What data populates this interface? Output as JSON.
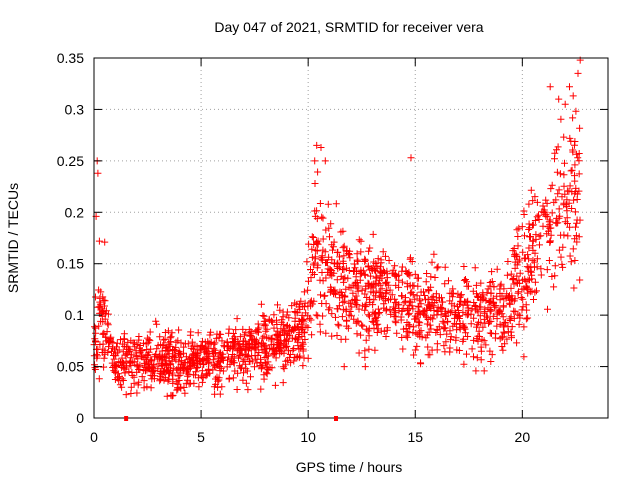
{
  "chart_data": {
    "type": "scatter",
    "title": "Day 047 of 2021, SRMTID for receiver vera",
    "xlabel": "GPS time / hours",
    "ylabel": "SRMTID / TECUs",
    "xlim": [
      0,
      24
    ],
    "ylim": [
      0,
      0.35
    ],
    "x_ticks": [
      "0",
      "5",
      "10",
      "15",
      "20"
    ],
    "y_ticks": [
      "0",
      "0.05",
      "0.1",
      "0.15",
      "0.2",
      "0.25",
      "0.3",
      "0.35"
    ],
    "grid": true,
    "marker": "+",
    "color": "#ff0000",
    "gap_markers_hours": [
      1.5,
      11.3
    ],
    "series": [
      {
        "name": "SRMTID",
        "profile": [
          {
            "x": 0.0,
            "y": 0.075,
            "spread": 0.02
          },
          {
            "x": 0.3,
            "y": 0.1,
            "spread": 0.03
          },
          {
            "x": 0.6,
            "y": 0.085,
            "spread": 0.025
          },
          {
            "x": 1.0,
            "y": 0.052,
            "spread": 0.018
          },
          {
            "x": 2.0,
            "y": 0.055,
            "spread": 0.02
          },
          {
            "x": 3.0,
            "y": 0.055,
            "spread": 0.02
          },
          {
            "x": 4.0,
            "y": 0.052,
            "spread": 0.02
          },
          {
            "x": 5.0,
            "y": 0.055,
            "spread": 0.02
          },
          {
            "x": 6.0,
            "y": 0.058,
            "spread": 0.02
          },
          {
            "x": 7.0,
            "y": 0.065,
            "spread": 0.02
          },
          {
            "x": 8.0,
            "y": 0.07,
            "spread": 0.022
          },
          {
            "x": 9.0,
            "y": 0.08,
            "spread": 0.025
          },
          {
            "x": 9.8,
            "y": 0.085,
            "spread": 0.03
          },
          {
            "x": 10.3,
            "y": 0.16,
            "spread": 0.045
          },
          {
            "x": 10.8,
            "y": 0.15,
            "spread": 0.04
          },
          {
            "x": 11.5,
            "y": 0.12,
            "spread": 0.035
          },
          {
            "x": 13.0,
            "y": 0.125,
            "spread": 0.035
          },
          {
            "x": 15.0,
            "y": 0.11,
            "spread": 0.03
          },
          {
            "x": 17.0,
            "y": 0.1,
            "spread": 0.03
          },
          {
            "x": 19.0,
            "y": 0.1,
            "spread": 0.03
          },
          {
            "x": 20.0,
            "y": 0.14,
            "spread": 0.04
          },
          {
            "x": 21.0,
            "y": 0.18,
            "spread": 0.045
          },
          {
            "x": 22.0,
            "y": 0.21,
            "spread": 0.05
          },
          {
            "x": 22.7,
            "y": 0.23,
            "spread": 0.06
          }
        ],
        "spikes": [
          {
            "x": 0.15,
            "y": 0.25
          },
          {
            "x": 0.18,
            "y": 0.238
          },
          {
            "x": 0.1,
            "y": 0.196
          },
          {
            "x": 0.25,
            "y": 0.172
          },
          {
            "x": 0.5,
            "y": 0.171
          },
          {
            "x": 10.4,
            "y": 0.265
          },
          {
            "x": 10.6,
            "y": 0.263
          },
          {
            "x": 10.8,
            "y": 0.25
          },
          {
            "x": 14.8,
            "y": 0.253
          },
          {
            "x": 21.3,
            "y": 0.322
          },
          {
            "x": 21.7,
            "y": 0.31
          },
          {
            "x": 22.0,
            "y": 0.305
          },
          {
            "x": 22.2,
            "y": 0.322
          },
          {
            "x": 22.6,
            "y": 0.335
          },
          {
            "x": 22.7,
            "y": 0.348
          }
        ]
      }
    ]
  }
}
